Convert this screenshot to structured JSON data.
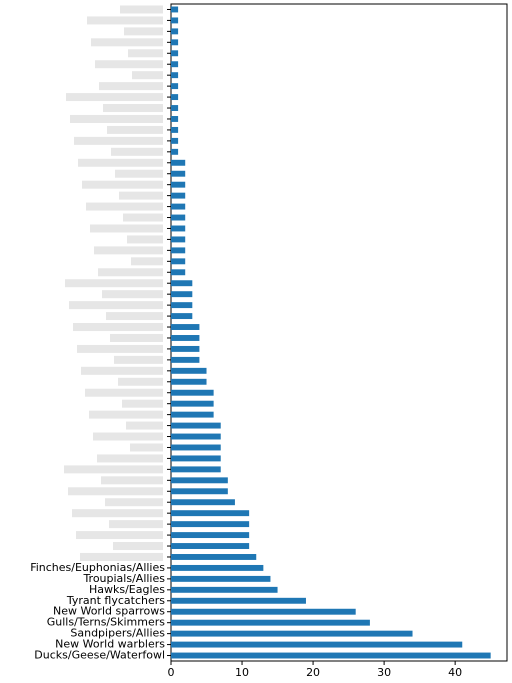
{
  "chart_data": {
    "type": "barh",
    "categories": [
      "Ducks/Geese/Waterfowl",
      "New World warblers",
      "Sandpipers/Allies",
      "Gulls/Terns/Skimmers",
      "New World sparrows",
      "Tyrant flycatchers",
      "Hawks/Eagles",
      "Troupials/Allies",
      "Finches/Euphonias/Allies",
      null,
      null,
      null,
      null,
      null,
      null,
      null,
      null,
      null,
      null,
      null,
      null,
      null,
      null,
      null,
      null,
      null,
      null,
      null,
      null,
      null,
      null,
      null,
      null,
      null,
      null,
      null,
      null,
      null,
      null,
      null,
      null,
      null,
      null,
      null,
      null,
      null,
      null,
      null,
      null,
      null,
      null,
      null,
      null,
      null,
      null,
      null,
      null,
      null,
      null,
      null
    ],
    "values": [
      45,
      41,
      34,
      28,
      26,
      19,
      15,
      14,
      13,
      12,
      11,
      11,
      11,
      11,
      9,
      8,
      8,
      7,
      7,
      7,
      7,
      7,
      6,
      6,
      6,
      5,
      5,
      4,
      4,
      4,
      4,
      3,
      3,
      3,
      3,
      2,
      2,
      2,
      2,
      2,
      2,
      2,
      2,
      2,
      2,
      2,
      1,
      1,
      1,
      1,
      1,
      1,
      1,
      1,
      1,
      1,
      1,
      1,
      1,
      1
    ],
    "color": "#1f77b4",
    "xlim": [
      0,
      47.3
    ],
    "xticks": [
      0,
      10,
      20,
      30,
      40
    ]
  }
}
